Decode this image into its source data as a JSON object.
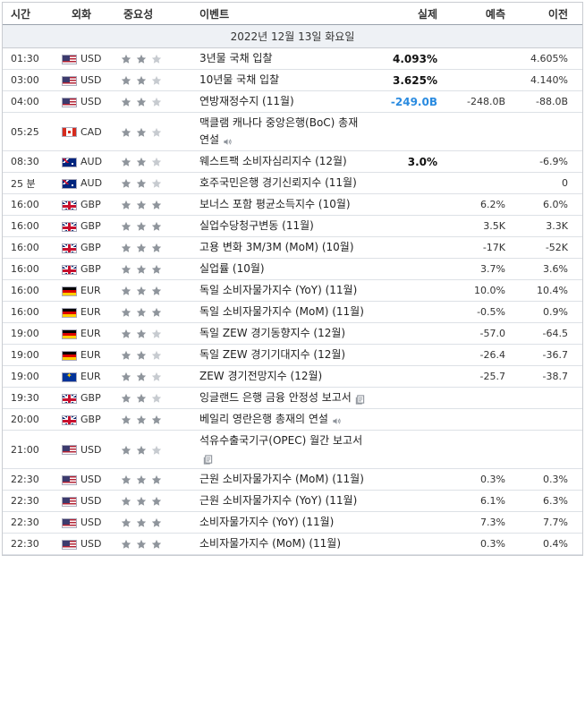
{
  "header": {
    "time": "시간",
    "currency": "외화",
    "importance": "중요성",
    "event": "이벤트",
    "actual": "실제",
    "forecast": "예측",
    "previous": "이전"
  },
  "date_label": "2022년 12월 13일 화요일",
  "colors": {
    "star_on": "#8f959c",
    "star_off": "#c7cbd0",
    "actual_negative": "#2a8be0",
    "date_bg": "#eef1f5"
  },
  "rows": [
    {
      "time": "01:30",
      "flag": "USD",
      "currency": "USD",
      "stars": 2,
      "event": "3년물 국채 입찰",
      "icon": "",
      "actual": "4.093%",
      "actual_color": "",
      "forecast": "",
      "previous": "4.605%"
    },
    {
      "time": "03:00",
      "flag": "USD",
      "currency": "USD",
      "stars": 2,
      "event": "10년물 국채 입찰",
      "icon": "",
      "actual": "3.625%",
      "actual_color": "",
      "forecast": "",
      "previous": "4.140%"
    },
    {
      "time": "04:00",
      "flag": "USD",
      "currency": "USD",
      "stars": 2,
      "event": "연방재정수지 (11월)",
      "icon": "",
      "actual": "-249.0B",
      "actual_color": "blue",
      "forecast": "-248.0B",
      "previous": "-88.0B"
    },
    {
      "time": "05:25",
      "flag": "CAD",
      "currency": "CAD",
      "stars": 2,
      "event": "맥클램 캐나다 중앙은행(BoC) 총재 연설",
      "icon": "speaker-icon",
      "actual": "",
      "actual_color": "",
      "forecast": "",
      "previous": ""
    },
    {
      "time": "08:30",
      "flag": "AUD",
      "currency": "AUD",
      "stars": 2,
      "event": "웨스트팩 소비자심리지수 (12월)",
      "icon": "",
      "actual": "3.0%",
      "actual_color": "",
      "forecast": "",
      "previous": "-6.9%"
    },
    {
      "time": "25 분",
      "flag": "AUD",
      "currency": "AUD",
      "stars": 2,
      "event": "호주국민은행 경기신뢰지수 (11월)",
      "icon": "",
      "actual": "",
      "actual_color": "",
      "forecast": "",
      "previous": "0"
    },
    {
      "time": "16:00",
      "flag": "GBP",
      "currency": "GBP",
      "stars": 3,
      "event": "보너스 포함 평균소득지수 (10월)",
      "icon": "",
      "actual": "",
      "actual_color": "",
      "forecast": "6.2%",
      "previous": "6.0%"
    },
    {
      "time": "16:00",
      "flag": "GBP",
      "currency": "GBP",
      "stars": 3,
      "event": "실업수당청구변동 (11월)",
      "icon": "",
      "actual": "",
      "actual_color": "",
      "forecast": "3.5K",
      "previous": "3.3K"
    },
    {
      "time": "16:00",
      "flag": "GBP",
      "currency": "GBP",
      "stars": 3,
      "event": "고용 변화 3M/3M (MoM) (10월)",
      "icon": "",
      "actual": "",
      "actual_color": "",
      "forecast": "-17K",
      "previous": "-52K"
    },
    {
      "time": "16:00",
      "flag": "GBP",
      "currency": "GBP",
      "stars": 3,
      "event": "실업률 (10월)",
      "icon": "",
      "actual": "",
      "actual_color": "",
      "forecast": "3.7%",
      "previous": "3.6%"
    },
    {
      "time": "16:00",
      "flag": "EUR",
      "currency": "EUR",
      "stars": 3,
      "event": "독일 소비자물가지수 (YoY) (11월)",
      "icon": "",
      "actual": "",
      "actual_color": "",
      "forecast": "10.0%",
      "previous": "10.4%"
    },
    {
      "time": "16:00",
      "flag": "EUR",
      "currency": "EUR",
      "stars": 3,
      "event": "독일 소비자물가지수 (MoM) (11월)",
      "icon": "",
      "actual": "",
      "actual_color": "",
      "forecast": "-0.5%",
      "previous": "0.9%"
    },
    {
      "time": "19:00",
      "flag": "EUR",
      "currency": "EUR",
      "stars": 2,
      "event": "독일 ZEW 경기동향지수 (12월)",
      "icon": "",
      "actual": "",
      "actual_color": "",
      "forecast": "-57.0",
      "previous": "-64.5"
    },
    {
      "time": "19:00",
      "flag": "EUR",
      "currency": "EUR",
      "stars": 2,
      "event": "독일 ZEW 경기기대지수 (12월)",
      "icon": "",
      "actual": "",
      "actual_color": "",
      "forecast": "-26.4",
      "previous": "-36.7"
    },
    {
      "time": "19:00",
      "flag": "EUZ",
      "currency": "EUR",
      "stars": 2,
      "event": "ZEW 경기전망지수 (12월)",
      "icon": "",
      "actual": "",
      "actual_color": "",
      "forecast": "-25.7",
      "previous": "-38.7"
    },
    {
      "time": "19:30",
      "flag": "GBP",
      "currency": "GBP",
      "stars": 2,
      "event": "잉글랜드 은행 금융 안정성 보고서",
      "icon": "report-icon",
      "actual": "",
      "actual_color": "",
      "forecast": "",
      "previous": ""
    },
    {
      "time": "20:00",
      "flag": "GBP",
      "currency": "GBP",
      "stars": 3,
      "event": "베일리 영란은행 총재의 연설",
      "icon": "speaker-icon",
      "actual": "",
      "actual_color": "",
      "forecast": "",
      "previous": ""
    },
    {
      "time": "21:00",
      "flag": "USD",
      "currency": "USD",
      "stars": 2,
      "event": "석유수출국기구(OPEC) 월간 보고서",
      "icon": "report-icon",
      "actual": "",
      "actual_color": "",
      "forecast": "",
      "previous": ""
    },
    {
      "time": "22:30",
      "flag": "USD",
      "currency": "USD",
      "stars": 3,
      "event": "근원 소비자물가지수 (MoM) (11월)",
      "icon": "",
      "actual": "",
      "actual_color": "",
      "forecast": "0.3%",
      "previous": "0.3%"
    },
    {
      "time": "22:30",
      "flag": "USD",
      "currency": "USD",
      "stars": 3,
      "event": "근원 소비자물가지수 (YoY) (11월)",
      "icon": "",
      "actual": "",
      "actual_color": "",
      "forecast": "6.1%",
      "previous": "6.3%"
    },
    {
      "time": "22:30",
      "flag": "USD",
      "currency": "USD",
      "stars": 3,
      "event": "소비자물가지수 (YoY) (11월)",
      "icon": "",
      "actual": "",
      "actual_color": "",
      "forecast": "7.3%",
      "previous": "7.7%"
    },
    {
      "time": "22:30",
      "flag": "USD",
      "currency": "USD",
      "stars": 3,
      "event": "소비자물가지수 (MoM) (11월)",
      "icon": "",
      "actual": "",
      "actual_color": "",
      "forecast": "0.3%",
      "previous": "0.4%"
    }
  ]
}
